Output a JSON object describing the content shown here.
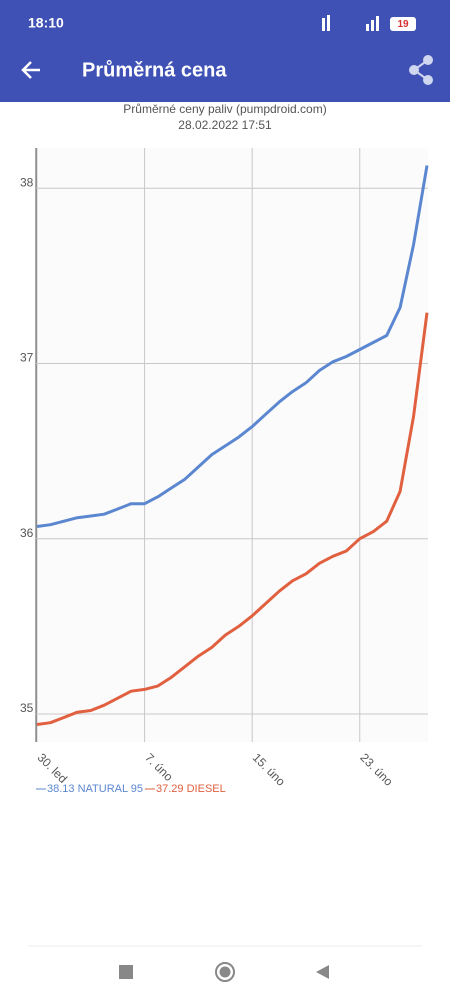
{
  "status_bar": {
    "time": "18:10",
    "battery": "19"
  },
  "app_bar": {
    "title": "Průměrná cena"
  },
  "chart_data": {
    "type": "line",
    "title": "Průměrné ceny paliv (pumpdroid.com)",
    "subtitle": "28.02.2022 17:51",
    "categories": [
      "30. led",
      null,
      null,
      null,
      null,
      null,
      null,
      null,
      "7. úno",
      null,
      null,
      null,
      null,
      null,
      null,
      null,
      "15. úno",
      null,
      null,
      null,
      null,
      null,
      null,
      null,
      "23. úno",
      null,
      null,
      null,
      null,
      null
    ],
    "series": [
      {
        "name": "NATURAL 95",
        "color": "#5b87d0",
        "values": [
          36.07,
          36.08,
          36.1,
          36.12,
          36.13,
          36.14,
          36.17,
          36.2,
          36.2,
          36.24,
          36.29,
          36.34,
          36.41,
          36.48,
          36.53,
          36.58,
          36.64,
          36.71,
          36.78,
          36.84,
          36.89,
          36.96,
          37.01,
          37.04,
          37.08,
          37.12,
          37.16,
          37.32,
          37.68,
          38.13
        ]
      },
      {
        "name": "DIESEL",
        "color": "#e0603f",
        "values": [
          34.94,
          34.95,
          34.98,
          35.01,
          35.02,
          35.05,
          35.09,
          35.13,
          35.14,
          35.16,
          35.21,
          35.27,
          35.33,
          35.38,
          35.45,
          35.5,
          35.56,
          35.63,
          35.7,
          35.76,
          35.8,
          35.86,
          35.9,
          35.93,
          36.0,
          36.04,
          36.1,
          36.27,
          36.7,
          37.29
        ]
      }
    ],
    "ylim": [
      34.84,
      38.23
    ],
    "yticks": [
      35,
      36,
      37,
      38
    ],
    "grid": true
  }
}
